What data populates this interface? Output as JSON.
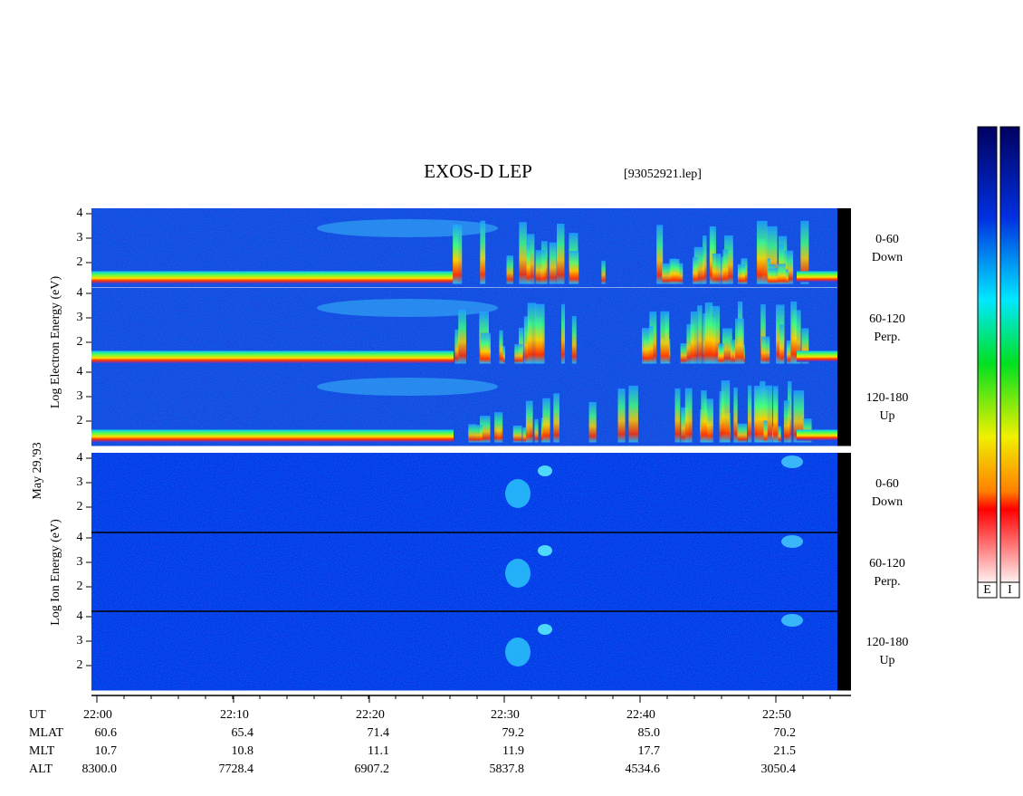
{
  "header": {
    "title": "EXOS-D LEP",
    "file": "[93052921.lep]"
  },
  "date": "May 29,'93",
  "electron_axis_label": "Log Electron Energy (eV)",
  "ion_axis_label": "Log Ion Energy (eV)",
  "energy_ticks": [
    "4",
    "3",
    "2"
  ],
  "panels": [
    {
      "angle": "0-60",
      "direction": "Down"
    },
    {
      "angle": "60-120",
      "direction": "Perp."
    },
    {
      "angle": "120-180",
      "direction": "Up"
    }
  ],
  "orbit": {
    "rows": [
      [
        "UT",
        "22:00",
        "22:10",
        "22:20",
        "22:30",
        "22:40",
        "22:50"
      ],
      [
        "MLAT",
        "60.6",
        "65.4",
        "71.4",
        "79.2",
        "85.0",
        "70.2"
      ],
      [
        "MLT",
        "10.7",
        "10.8",
        "11.1",
        "11.9",
        "17.7",
        "21.5"
      ],
      [
        "ALT",
        "8300.0",
        "7728.4",
        "6907.2",
        "5837.8",
        "4534.6",
        "3050.4"
      ]
    ]
  },
  "colorbars": [
    "E",
    "I"
  ]
}
